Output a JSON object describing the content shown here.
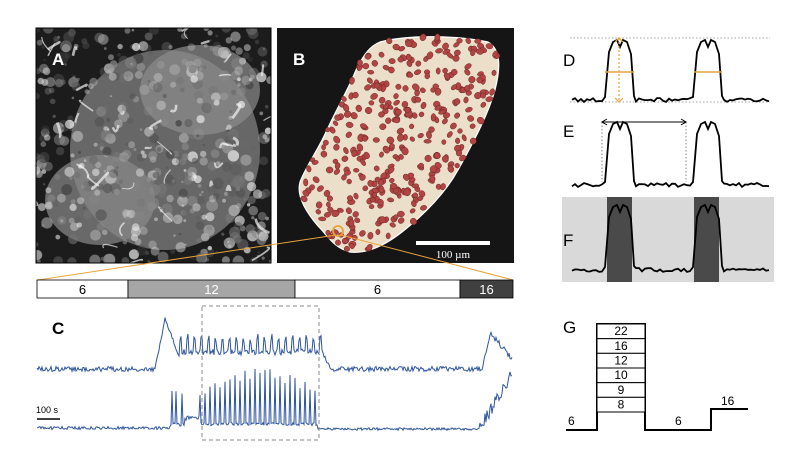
{
  "panels": {
    "a": {
      "letter": "A"
    },
    "b": {
      "letter": "B",
      "scale_bar": "100 µm"
    },
    "c": {
      "letter": "C",
      "time_scale": "100 s"
    },
    "d": {
      "letter": "D"
    },
    "e": {
      "letter": "E"
    },
    "f": {
      "letter": "F"
    },
    "g": {
      "letter": "G"
    }
  },
  "protocol_bar": [
    {
      "label": "6",
      "fill": "#ffffff",
      "text_color": "#000000"
    },
    {
      "label": "12",
      "fill": "#a6a6a6",
      "text_color": "#ffffff"
    },
    {
      "label": "6",
      "fill": "#ffffff",
      "text_color": "#000000"
    },
    {
      "label": "16",
      "fill": "#404040",
      "text_color": "#ffffff"
    }
  ],
  "staircase": {
    "levels": [
      "22",
      "16",
      "12",
      "10",
      "9",
      "8"
    ],
    "baseline_left": "6",
    "baseline_mid": "6",
    "right_step": "16"
  },
  "colors": {
    "trace": "#2e55a0",
    "highlight": "#e8a33a",
    "cell": "#b24444",
    "islet_bg": "#ecdfc9",
    "dark_band": "#4a4a4a"
  }
}
